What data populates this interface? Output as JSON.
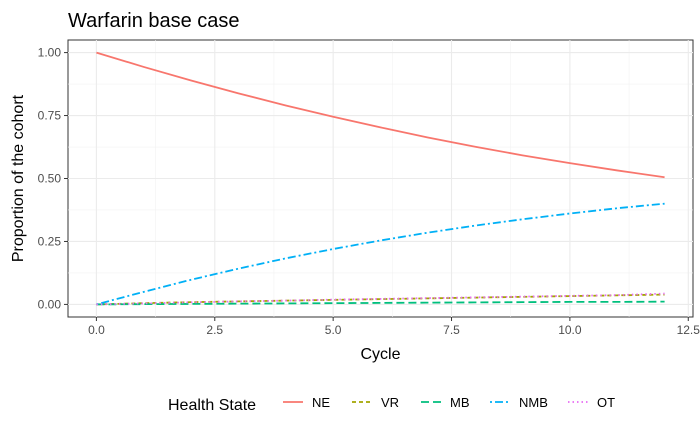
{
  "chart_data": {
    "type": "line",
    "title": "Warfarin base case",
    "xlabel": "Cycle",
    "ylabel": "Proportion of the cohort",
    "xlim": [
      -0.6,
      12.6
    ],
    "ylim": [
      -0.05,
      1.05
    ],
    "x_ticks": [
      0.0,
      2.5,
      5.0,
      7.5,
      10.0,
      12.5
    ],
    "x_tick_labels": [
      "0.0",
      "2.5",
      "5.0",
      "7.5",
      "10.0",
      "12.5"
    ],
    "y_ticks": [
      0.0,
      0.25,
      0.5,
      0.75,
      1.0
    ],
    "y_tick_labels": [
      "0.00",
      "0.25",
      "0.50",
      "0.75",
      "1.00"
    ],
    "grid": true,
    "legend": {
      "title": "Health State",
      "position": "bottom"
    },
    "x": [
      0,
      1,
      2,
      3,
      4,
      5,
      6,
      7,
      8,
      9,
      10,
      11,
      12
    ],
    "series": [
      {
        "name": "NE",
        "color": "#F8766D",
        "dash": "solid",
        "values": [
          1.0,
          0.943,
          0.889,
          0.838,
          0.79,
          0.745,
          0.703,
          0.663,
          0.626,
          0.592,
          0.561,
          0.532,
          0.505
        ]
      },
      {
        "name": "VR",
        "color": "#A3A500",
        "dash": "dashed",
        "values": [
          0.0,
          0.005,
          0.009,
          0.012,
          0.015,
          0.018,
          0.021,
          0.024,
          0.027,
          0.03,
          0.033,
          0.036,
          0.039
        ]
      },
      {
        "name": "MB",
        "color": "#00BF7D",
        "dash": "longdash",
        "values": [
          0.0,
          0.001,
          0.002,
          0.003,
          0.004,
          0.005,
          0.006,
          0.007,
          0.008,
          0.009,
          0.01,
          0.01,
          0.011
        ]
      },
      {
        "name": "NMB",
        "color": "#00B0F6",
        "dash": "dotdash",
        "values": [
          0.0,
          0.05,
          0.098,
          0.142,
          0.183,
          0.22,
          0.254,
          0.285,
          0.313,
          0.338,
          0.361,
          0.382,
          0.4
        ]
      },
      {
        "name": "OT",
        "color": "#E76BF3",
        "dash": "dotted",
        "values": [
          0.0,
          0.004,
          0.008,
          0.012,
          0.015,
          0.019,
          0.022,
          0.025,
          0.028,
          0.031,
          0.034,
          0.037,
          0.043
        ]
      }
    ]
  }
}
